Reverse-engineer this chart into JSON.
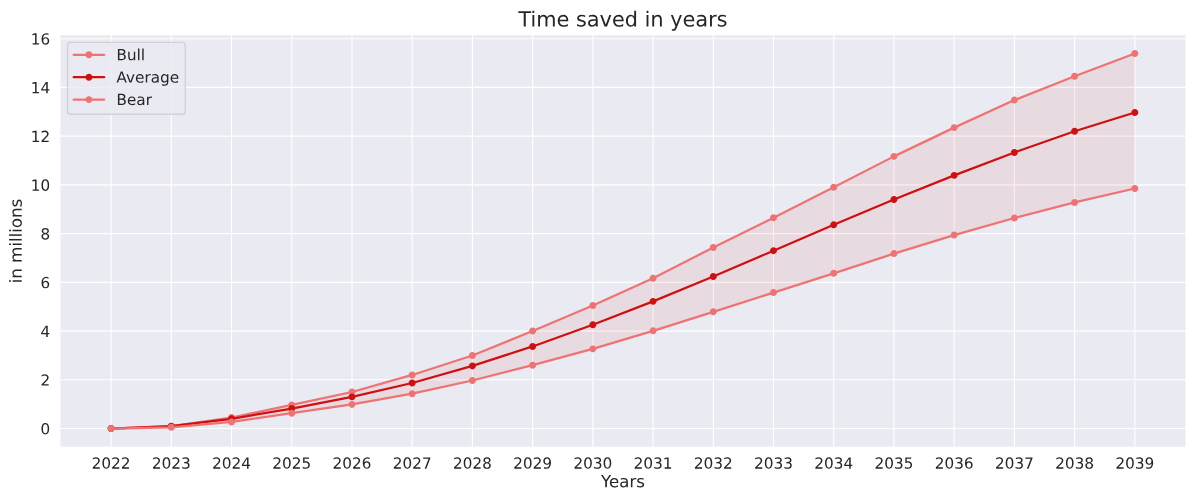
{
  "chart_data": {
    "type": "line",
    "title": "Time saved in years",
    "xlabel": "Years",
    "ylabel": "in millions",
    "categories": [
      "2022",
      "2023",
      "2024",
      "2025",
      "2026",
      "2027",
      "2028",
      "2029",
      "2030",
      "2031",
      "2032",
      "2033",
      "2034",
      "2035",
      "2036",
      "2037",
      "2038",
      "2039"
    ],
    "series": [
      {
        "name": "Bull",
        "color": "#ee7373",
        "values": [
          0,
          0.1,
          0.45,
          0.97,
          1.5,
          2.2,
          3.0,
          4.0,
          5.05,
          6.17,
          7.43,
          8.65,
          9.9,
          11.17,
          12.35,
          13.48,
          14.46,
          15.39
        ]
      },
      {
        "name": "Average",
        "color": "#d01010",
        "values": [
          0,
          0.1,
          0.4,
          0.82,
          1.3,
          1.87,
          2.57,
          3.37,
          4.26,
          5.22,
          6.24,
          7.3,
          8.36,
          9.4,
          10.39,
          11.33,
          12.2,
          12.97
        ],
        "lower": [
          0,
          0.05,
          0.27,
          0.63,
          0.99,
          1.43,
          1.97,
          2.6,
          3.27,
          4.01,
          4.79,
          5.58,
          6.37,
          7.18,
          7.94,
          8.64,
          9.28,
          9.85
        ],
        "upper": [
          0,
          0.1,
          0.45,
          0.97,
          1.5,
          2.2,
          3.0,
          4.0,
          5.05,
          6.17,
          7.43,
          8.65,
          9.9,
          11.17,
          12.35,
          13.48,
          14.46,
          15.39
        ]
      },
      {
        "name": "Bear",
        "color": "#ee7373",
        "values": [
          0,
          0.05,
          0.27,
          0.63,
          0.99,
          1.43,
          1.97,
          2.6,
          3.27,
          4.01,
          4.79,
          5.58,
          6.37,
          7.18,
          7.94,
          8.64,
          9.28,
          9.85
        ]
      }
    ],
    "ylim": [
      -0.77,
      16.16
    ],
    "yticks": [
      0,
      2,
      4,
      6,
      8,
      10,
      12,
      14,
      16
    ],
    "grid": true,
    "legend": "top left",
    "marker": "circle",
    "line_style": "solid"
  }
}
